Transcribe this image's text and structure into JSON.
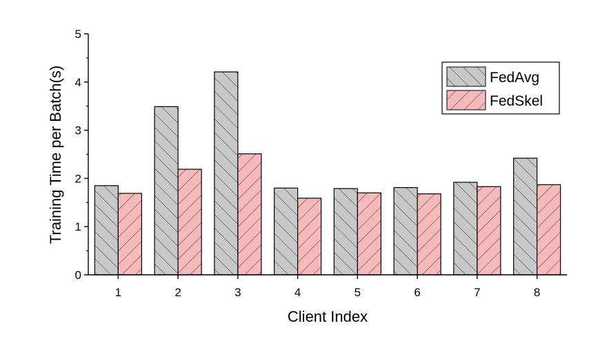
{
  "chart_data": {
    "type": "bar",
    "title": "",
    "xlabel": "Client Index",
    "ylabel": "Training Time per Batch(s)",
    "categories": [
      "1",
      "2",
      "3",
      "4",
      "5",
      "6",
      "7",
      "8"
    ],
    "ylim": [
      0,
      5
    ],
    "yticks": [
      "0",
      "1",
      "2",
      "3",
      "4",
      "5"
    ],
    "legend_position": "top-right",
    "grid": false,
    "series": [
      {
        "name": "FedAvg",
        "values": [
          1.85,
          3.49,
          4.21,
          1.8,
          1.79,
          1.81,
          1.92,
          2.42
        ],
        "color": "#c8c8c8",
        "hatch": "forward-diagonal"
      },
      {
        "name": "FedSkel",
        "values": [
          1.69,
          2.19,
          2.51,
          1.59,
          1.7,
          1.68,
          1.83,
          1.87
        ],
        "color": "#f7b9b9",
        "hatch": "backward-diagonal"
      }
    ]
  }
}
